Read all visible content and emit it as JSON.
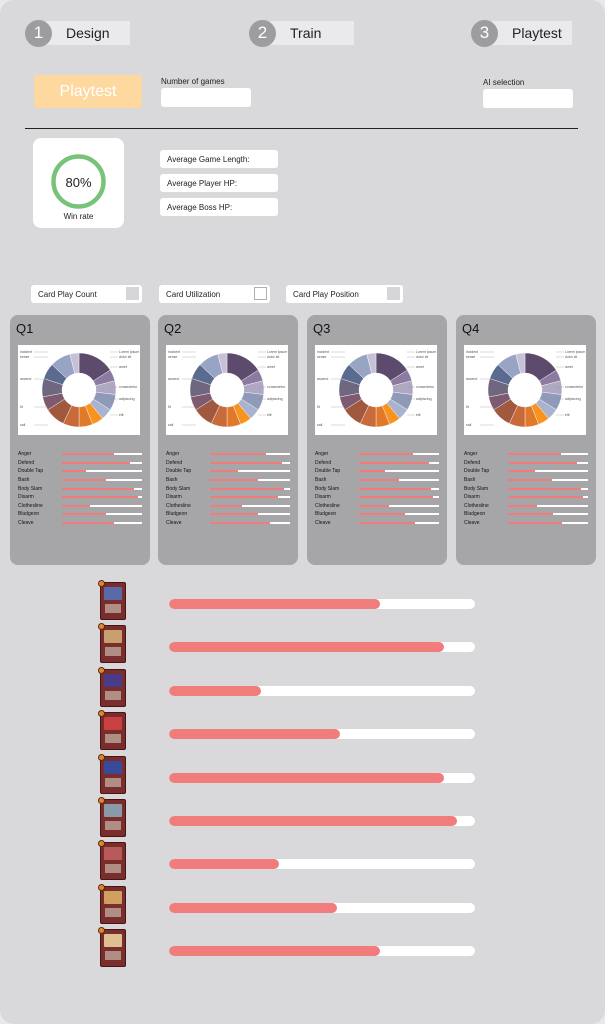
{
  "steps": [
    {
      "num": "1",
      "label": "Design"
    },
    {
      "num": "2",
      "label": "Train"
    },
    {
      "num": "3",
      "label": "Playtest"
    }
  ],
  "playtest_button": "Playtest",
  "number_of_games_label": "Number of games",
  "ai_selection_label": "AI selection",
  "win": {
    "percent": "80%",
    "label": "Win rate",
    "fraction": 0.8
  },
  "stats": [
    "Average Game Length:",
    "Average Player HP:",
    "Average Boss HP:"
  ],
  "toggles": [
    {
      "label": "Card Play Count",
      "style": "filled"
    },
    {
      "label": "Card Utilization",
      "style": "outline"
    },
    {
      "label": "Card Play Position",
      "style": "filled"
    }
  ],
  "quarter_stat_names": [
    "Anger",
    "Defend",
    "Double Tap",
    "Bash",
    "Body Slam",
    "Disarm",
    "Clothesline",
    "Bludgeon",
    "Cleave"
  ],
  "quarters": [
    {
      "title": "Q1",
      "values": [
        0.65,
        0.85,
        0.3,
        0.55,
        0.9,
        0.95,
        0.35,
        0.55,
        0.65
      ]
    },
    {
      "title": "Q2",
      "values": [
        0.7,
        0.9,
        0.35,
        0.6,
        0.92,
        0.85,
        0.4,
        0.6,
        0.75
      ]
    },
    {
      "title": "Q3",
      "values": [
        0.68,
        0.88,
        0.32,
        0.5,
        0.9,
        0.92,
        0.38,
        0.58,
        0.7
      ]
    },
    {
      "title": "Q4",
      "values": [
        0.66,
        0.86,
        0.34,
        0.55,
        0.91,
        0.94,
        0.36,
        0.56,
        0.68
      ]
    }
  ],
  "donut_labels": {
    "left": [
      "incident",
      "sense",
      "ascend",
      "fit",
      "sail"
    ],
    "right": [
      "Lorem ipsum",
      "dolor sit",
      "amet",
      "consectetur",
      "adipiscing",
      "elit"
    ]
  },
  "colors": {
    "accent_bar": "#f07c7c",
    "playtest_button": "#fdd9a0",
    "win_ring": "#77c37a",
    "donut": [
      "#5d4b6e",
      "#8c7aa0",
      "#b0a8c2",
      "#8f99b8",
      "#a9b3cf",
      "#f7931e",
      "#e07a2a",
      "#c86a3a",
      "#a0583f",
      "#7d5a70",
      "#6f6680",
      "#5a6b8f",
      "#97a4c4",
      "#c8c0d6"
    ]
  },
  "donut_segments": [
    0.16,
    0.05,
    0.06,
    0.07,
    0.05,
    0.05,
    0.06,
    0.07,
    0.09,
    0.06,
    0.08,
    0.07,
    0.09,
    0.04
  ],
  "card_rows": [
    {
      "fraction": 0.69,
      "art": "#5a6aa8"
    },
    {
      "fraction": 0.9,
      "art": "#c8a070"
    },
    {
      "fraction": 0.3,
      "art": "#4a3a8a"
    },
    {
      "fraction": 0.56,
      "art": "#c84040"
    },
    {
      "fraction": 0.9,
      "art": "#3a4a9a"
    },
    {
      "fraction": 0.94,
      "art": "#8a9aa8"
    },
    {
      "fraction": 0.36,
      "art": "#b85a5a"
    },
    {
      "fraction": 0.55,
      "art": "#d0a060"
    },
    {
      "fraction": 0.69,
      "art": "#e0c090"
    }
  ]
}
